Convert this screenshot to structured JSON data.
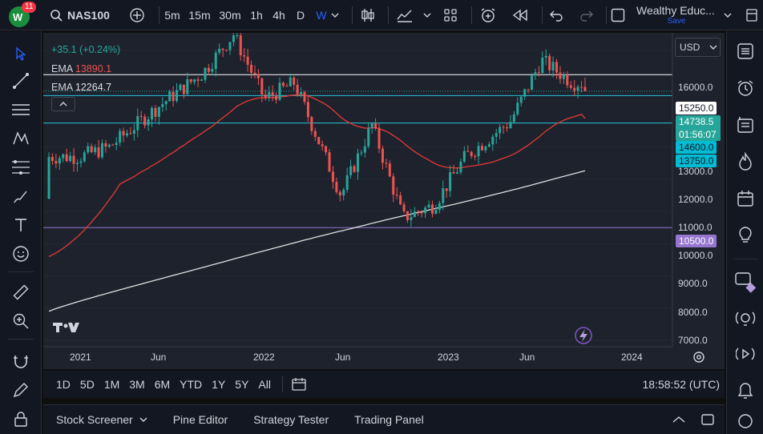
{
  "header": {
    "logo_badge": "11",
    "symbol": "NAS100",
    "intervals": [
      "5m",
      "15m",
      "30m",
      "1h",
      "4h",
      "D",
      "W"
    ],
    "active_interval": "W",
    "layout_name": "Wealthy Educ...",
    "layout_save": "Save"
  },
  "legend": {
    "change": "+35.1 (+0.24%)",
    "ema1_label": "EMA",
    "ema1_value": "13890.1",
    "ema2_label": "EMA",
    "ema2_value": "12264.7"
  },
  "price_axis": {
    "currency": "USD",
    "ticks": [
      "16000.0",
      "13000.0",
      "12000.0",
      "11000.0",
      "10000.0",
      "9000.0",
      "8000.0",
      "7000.0"
    ],
    "tags": {
      "line1": "15250.0",
      "current": "14738.5",
      "countdown": "01:56:07",
      "line2": "14600.0",
      "line3": "13750.0",
      "line4": "10500.0"
    }
  },
  "time_axis": [
    "2021",
    "Jun",
    "2022",
    "Jun",
    "2023",
    "Jun",
    "2024"
  ],
  "range_bar": {
    "ranges": [
      "1D",
      "5D",
      "1M",
      "3M",
      "6M",
      "YTD",
      "1Y",
      "5Y",
      "All"
    ],
    "clock": "18:58:52 (UTC)"
  },
  "panel_bar": {
    "tabs": [
      "Stock Screener",
      "Pine Editor",
      "Strategy Tester",
      "Trading Panel"
    ]
  },
  "colors": {
    "up": "#26a69a",
    "down": "#ef5350",
    "ema_fast": "#e53935",
    "ema_slow": "#e0e0e0",
    "accent": "#2962ff"
  },
  "chart_data": {
    "type": "candlestick",
    "symbol": "NAS100",
    "interval": "W",
    "x_ticks": [
      "2021",
      "Jun",
      "2022",
      "Jun",
      "2023",
      "Jun",
      "2024"
    ],
    "ylim": [
      6800,
      16500
    ],
    "horizontal_lines": [
      15250,
      14600,
      13750,
      10500
    ],
    "last_price": 14738.5,
    "trend_anchors": [
      {
        "t": "2021-01",
        "close": 12700
      },
      {
        "t": "2021-03",
        "close": 13000
      },
      {
        "t": "2021-06",
        "close": 14200
      },
      {
        "t": "2021-09",
        "close": 15300
      },
      {
        "t": "2021-11",
        "close": 16500
      },
      {
        "t": "2022-01",
        "close": 14500
      },
      {
        "t": "2022-03",
        "close": 15000
      },
      {
        "t": "2022-06",
        "close": 11500
      },
      {
        "t": "2022-08",
        "close": 13700
      },
      {
        "t": "2022-10",
        "close": 10800
      },
      {
        "t": "2022-12",
        "close": 11200
      },
      {
        "t": "2023-02",
        "close": 12700
      },
      {
        "t": "2023-05",
        "close": 13800
      },
      {
        "t": "2023-07",
        "close": 15700
      },
      {
        "t": "2023-09",
        "close": 15000
      }
    ],
    "ema_fast_last": 13890.1,
    "ema_slow_last": 12264.7
  }
}
